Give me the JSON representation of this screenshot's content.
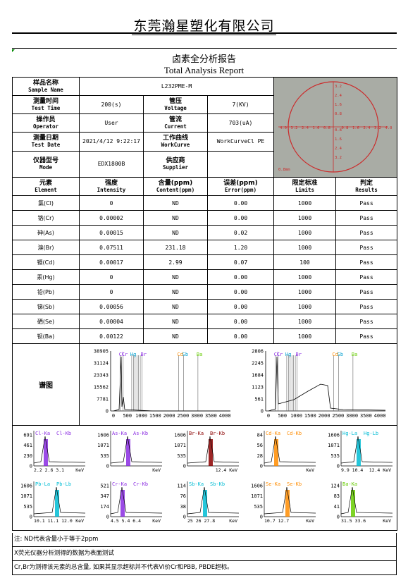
{
  "company": "东莞瀚星塑化有限公司",
  "title_cn": "卤素全分析报告",
  "title_en": "Total Analysis Report",
  "info": {
    "sample_name": {
      "cn": "样品名称",
      "en": "Sample Name",
      "value": "L232PME-M"
    },
    "test_time": {
      "cn": "测量时间",
      "en": "Test Time",
      "value": "200(s)"
    },
    "voltage": {
      "cn": "管压",
      "en": "Voltage",
      "value": "7(KV)"
    },
    "operator": {
      "cn": "操作员",
      "en": "Operator",
      "value": "User"
    },
    "current": {
      "cn": "管流",
      "en": "Current",
      "value": "703(uA)"
    },
    "test_date": {
      "cn": "测量日期",
      "en": "Test Date",
      "value": "2021/4/12 9:22:17"
    },
    "workcurve": {
      "cn": "工作曲线",
      "en": "WorkCurve",
      "value": "WorkCurveCl PE"
    },
    "mode": {
      "cn": "仪器型号",
      "en": "Mode",
      "value": "EDX1800B"
    },
    "supplier": {
      "cn": "供应商",
      "en": "Supplier",
      "value": ""
    }
  },
  "calibration": {
    "ticks_h": [
      "4.0",
      "3.2",
      "2.4",
      "1.6",
      "0.8",
      "0.8",
      "1.6",
      "2.4",
      "3.2",
      "4.0"
    ],
    "ticks_v": [
      "3.2",
      "2.4",
      "1.6",
      "0.8",
      "0.8",
      "1.6",
      "2.4",
      "3.2"
    ],
    "unit": "0.8mm"
  },
  "element_headers": {
    "element": {
      "cn": "元素",
      "en": "Element"
    },
    "intensity": {
      "cn": "强度",
      "en": "Intensity"
    },
    "content": {
      "cn": "含量(ppm)",
      "en": "Content(ppm)"
    },
    "error": {
      "cn": "误差(ppm)",
      "en": "Error(ppm)"
    },
    "limits": {
      "cn": "限定标准",
      "en": "Limits"
    },
    "results": {
      "cn": "判定",
      "en": "Results"
    }
  },
  "elements": [
    {
      "name": "氯(Cl)",
      "intensity": "0",
      "content": "ND",
      "error": "0.00",
      "limit": "1000",
      "result": "Pass"
    },
    {
      "name": "铬(Cr)",
      "intensity": "0.00002",
      "content": "ND",
      "error": "0.00",
      "limit": "1000",
      "result": "Pass"
    },
    {
      "name": "砷(As)",
      "intensity": "0.00015",
      "content": "ND",
      "error": "0.02",
      "limit": "1000",
      "result": "Pass"
    },
    {
      "name": "溴(Br)",
      "intensity": "0.07511",
      "content": "231.18",
      "error": "1.20",
      "limit": "1000",
      "result": "Pass"
    },
    {
      "name": "镉(Cd)",
      "intensity": "0.00017",
      "content": "2.99",
      "error": "0.07",
      "limit": "100",
      "result": "Pass"
    },
    {
      "name": "汞(Hg)",
      "intensity": "0",
      "content": "ND",
      "error": "0.00",
      "limit": "1000",
      "result": "Pass"
    },
    {
      "name": "铅(Pb)",
      "intensity": "0",
      "content": "ND",
      "error": "0.00",
      "limit": "1000",
      "result": "Pass"
    },
    {
      "name": "锑(Sb)",
      "intensity": "0.00056",
      "content": "ND",
      "error": "0.00",
      "limit": "1000",
      "result": "Pass"
    },
    {
      "name": "硒(Se)",
      "intensity": "0.00004",
      "content": "ND",
      "error": "0.00",
      "limit": "1000",
      "result": "Pass"
    },
    {
      "name": "钡(Ba)",
      "intensity": "0.00122",
      "content": "ND",
      "error": "0.00",
      "limit": "1000",
      "result": "Pass"
    }
  ],
  "spectrum_label": "谱图",
  "spectra": {
    "left": {
      "yticks": [
        "38905",
        "31124",
        "23343",
        "15562",
        "7781",
        "0"
      ],
      "xticks": [
        "0",
        "500",
        "1000",
        "1500",
        "2000",
        "2500",
        "3000",
        "3500",
        "4000"
      ],
      "markers": [
        "Cl",
        "Cr",
        "Hg",
        "Br",
        "Cd",
        "Sb",
        "Ba"
      ]
    },
    "right": {
      "yticks": [
        "2806",
        "2245",
        "1684",
        "1123",
        "561",
        "0"
      ],
      "xticks": [
        "0",
        "500",
        "1000",
        "1500",
        "2000",
        "2500",
        "3000",
        "3500",
        "4000"
      ],
      "markers": [
        "Cl",
        "Cr",
        "Hg",
        "Br",
        "Cd",
        "Sb",
        "Ba"
      ]
    }
  },
  "mini_spectra": [
    {
      "labels": [
        "Cl-Ka",
        "Cl-Kb"
      ],
      "yticks": [
        "691",
        "461",
        "230",
        "0"
      ],
      "xticks": "2.2 2.6 3.1",
      "unit": "KeV",
      "color": "#8a2be2"
    },
    {
      "labels": [
        "As-Ka",
        "As-Kb"
      ],
      "yticks": [
        "1606",
        "1071",
        "535",
        "0"
      ],
      "xticks": "",
      "unit": "KeV",
      "color": "#8a2be2"
    },
    {
      "labels": [
        "Br-Ka",
        "Br-Kb"
      ],
      "yticks": [
        "1606",
        "1071",
        "535",
        "0"
      ],
      "xticks": "",
      "unit": "12.4 KeV",
      "color": "#8b0000"
    },
    {
      "labels": [
        "Cd-Ka",
        "Cd-Kb"
      ],
      "yticks": [
        "84",
        "56",
        "28",
        "0"
      ],
      "xticks": "",
      "unit": "KeV",
      "color": "#ff8c00"
    },
    {
      "labels": [
        "Hg-La",
        "Hg-Lb"
      ],
      "yticks": [
        "1606",
        "1071",
        "535",
        "0"
      ],
      "xticks": "9.9 10.4",
      "unit": "12.4 KeV",
      "color": "#00bcd4"
    },
    {
      "labels": [
        "Pb-La",
        "Pb-Lb"
      ],
      "yticks": [
        "1606",
        "1071",
        "535",
        "0"
      ],
      "xticks": "10.1 11.1 12.0",
      "unit": "KeV",
      "color": "#00bcd4"
    },
    {
      "labels": [
        "Cr-Ka",
        "Cr-Kb"
      ],
      "yticks": [
        "521",
        "347",
        "174",
        "0"
      ],
      "xticks": "4.5 5.4 6.4",
      "unit": "KeV",
      "color": "#8a2be2"
    },
    {
      "labels": [
        "Sb-Ka",
        "Sb-Kb"
      ],
      "yticks": [
        "114",
        "76",
        "38",
        "0"
      ],
      "xticks": "25 26 27.8",
      "unit": "KeV",
      "color": "#00bcd4"
    },
    {
      "labels": [
        "Se-Ka",
        "Se-Kb"
      ],
      "yticks": [
        "1606",
        "1071",
        "535",
        "0"
      ],
      "xticks": "10.7 12.7",
      "unit": "KeV",
      "color": "#ff8c00"
    },
    {
      "labels": [
        "Ba-Ka"
      ],
      "yticks": [
        "124",
        "83",
        "41",
        "0"
      ],
      "xticks": "31.5 33.6",
      "unit": "KeV",
      "color": "#66cc00"
    }
  ],
  "notes": [
    "注: ND代表含量小于等于2ppm",
    "X荧光仪器分析测得的数据为表面测试",
    "Cr,Br为测得该元素的总含量, 如果其显示超标并不代表VI价Cr和PBB, PBDE超标。"
  ]
}
